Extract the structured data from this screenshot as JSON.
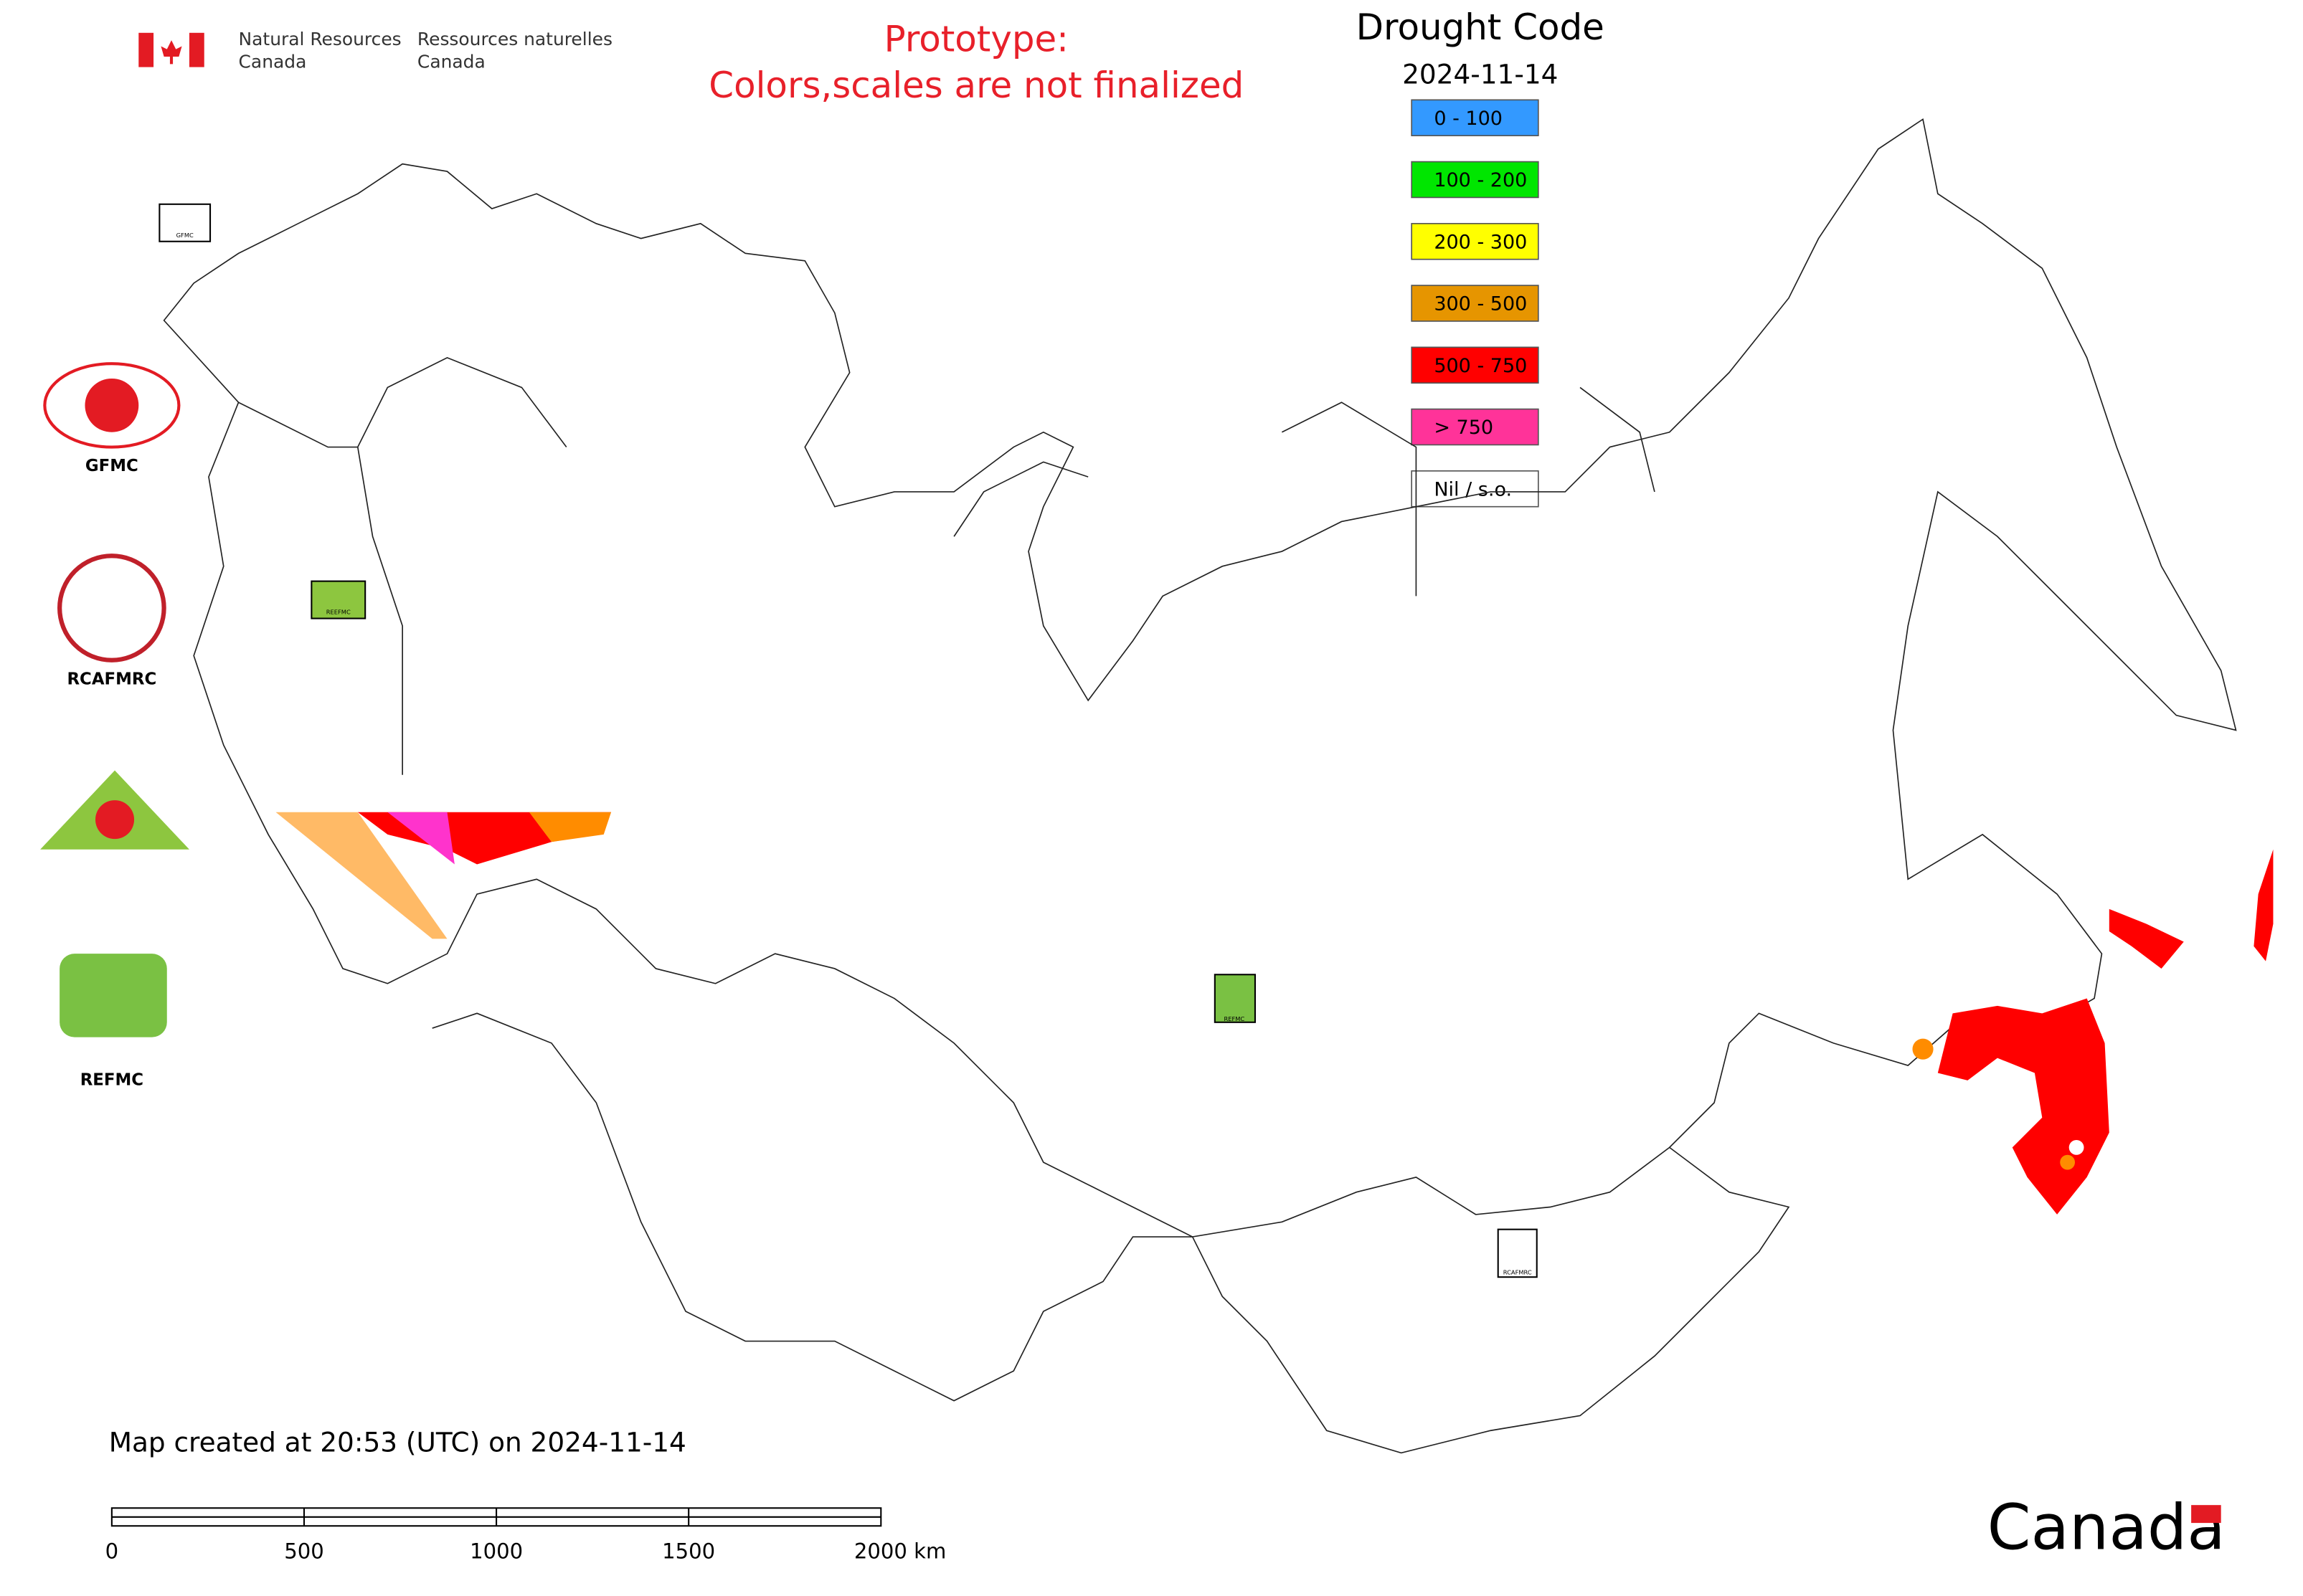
{
  "header": {
    "department_en": [
      "Natural Resources",
      "Canada"
    ],
    "department_fr": [
      "Ressources naturelles",
      "Canada"
    ]
  },
  "notice": [
    "Prototype:",
    "Colors,scales are not finalized"
  ],
  "legend": {
    "title": "Drought Code",
    "date": "2024-11-14",
    "items": [
      {
        "label": "0 - 100",
        "color": "#3399ff"
      },
      {
        "label": "100 - 200",
        "color": "#00e600"
      },
      {
        "label": "200 - 300",
        "color": "#ffff00"
      },
      {
        "label": "300 - 500",
        "color": "#e69500"
      },
      {
        "label": "500 - 750",
        "color": "#ff0000"
      },
      {
        "label": "> 750",
        "color": "#ff3399"
      },
      {
        "label": "Nil / s.o.",
        "color": "#ffffff"
      }
    ]
  },
  "logos": [
    "GFMC",
    "RCAFMRC",
    "REFMC"
  ],
  "map_logo_labels": [
    "GFMC",
    "REEFMC",
    "REFMC",
    "RCAFMRC"
  ],
  "footer": "Map created at 20:53 (UTC) on 2024-11-14",
  "scale_bar": [
    "0",
    "500",
    "1000",
    "1500",
    "2000 km"
  ],
  "wordmark": "Canada"
}
